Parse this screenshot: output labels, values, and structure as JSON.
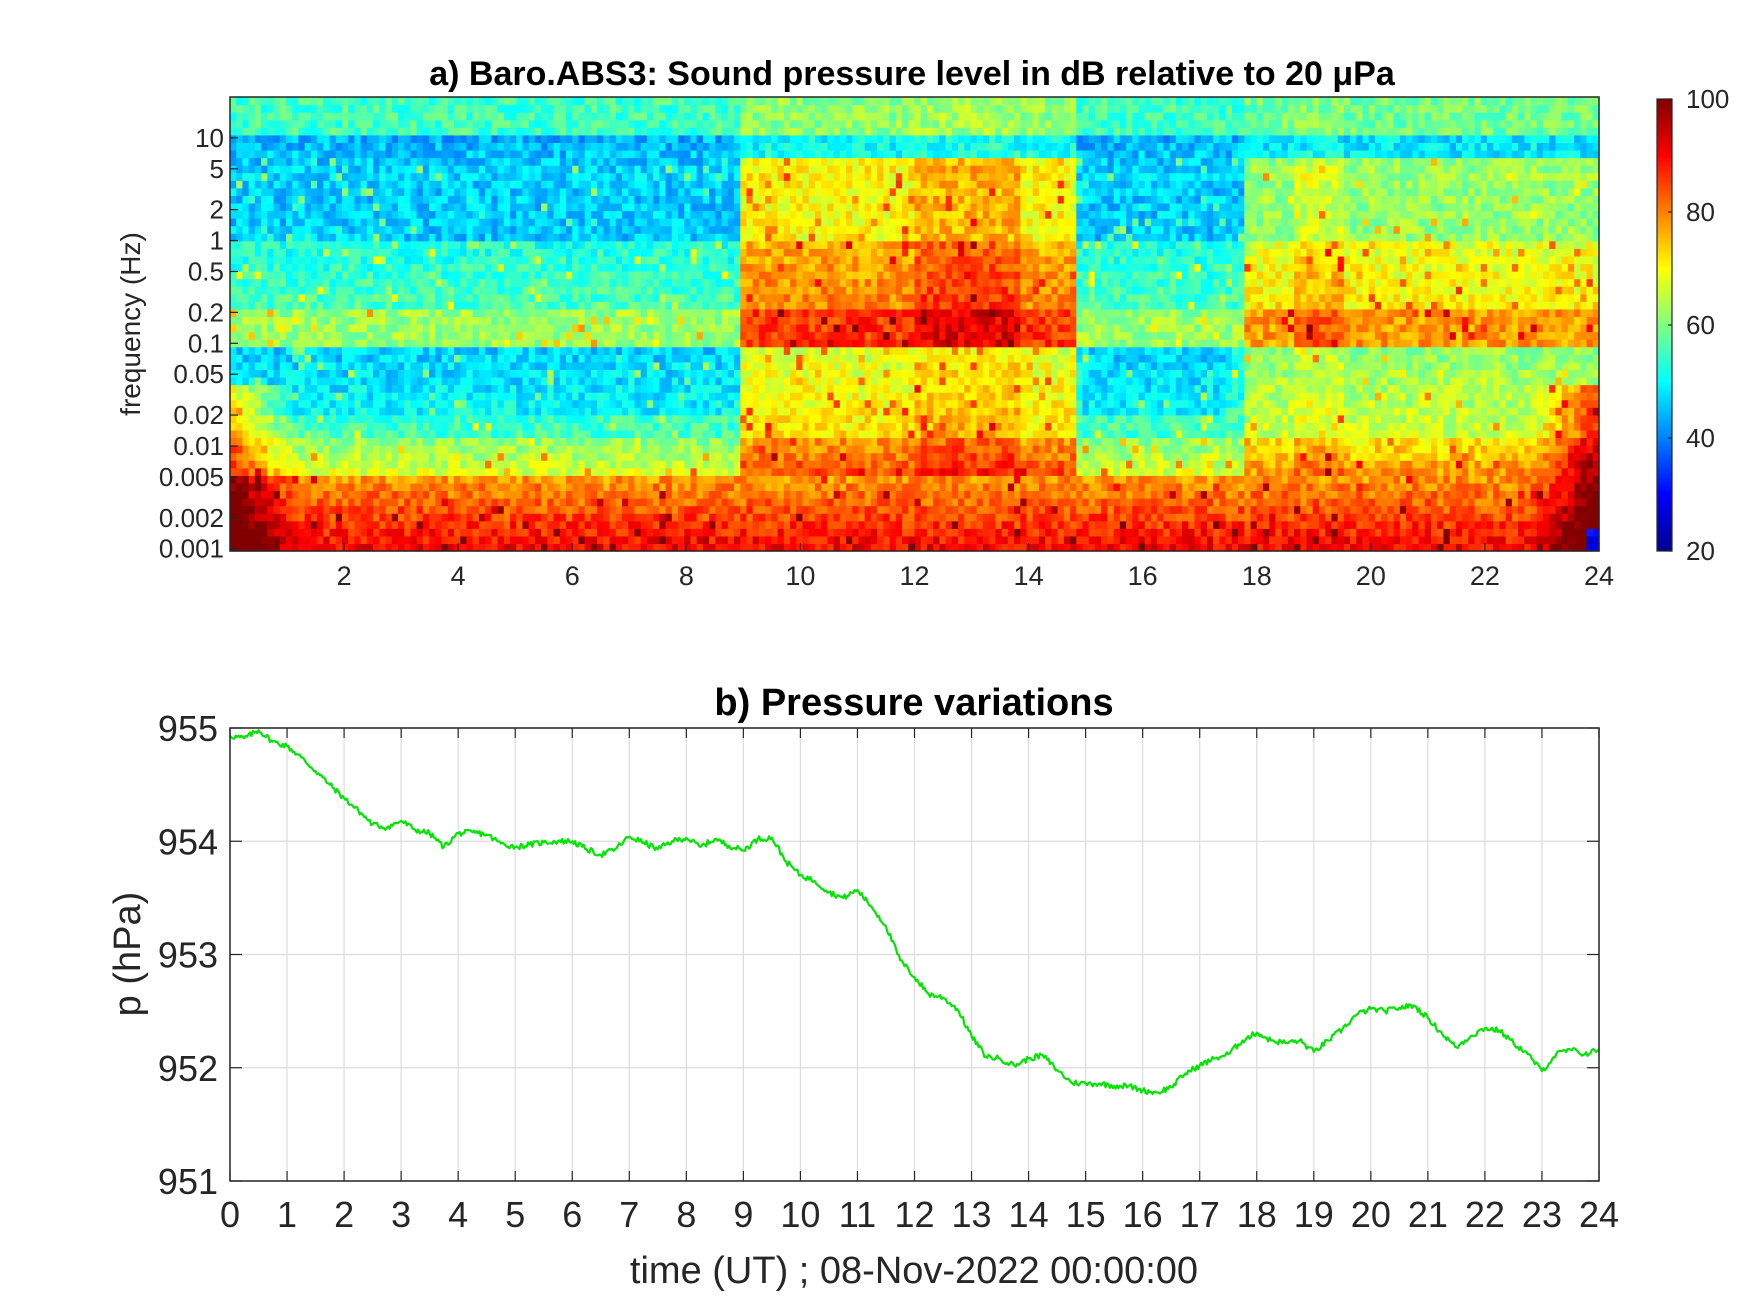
{
  "chart_data": [
    {
      "type": "heatmap",
      "title": "a) Baro.ABS3: Sound pressure level in dB relative to 20 μPa",
      "ylabel": "frequency (Hz)",
      "xlabel": "",
      "y_scale": "log",
      "x_ticks": [
        "2",
        "4",
        "6",
        "8",
        "10",
        "12",
        "14",
        "16",
        "18",
        "20",
        "22",
        "24"
      ],
      "y_ticks": [
        "0.001",
        "0.002",
        "0.005",
        "0.01",
        "0.02",
        "0.05",
        "0.1",
        "0.2",
        "0.5",
        "1",
        "2",
        "5",
        "10"
      ],
      "xlim": [
        0,
        24
      ],
      "ylim": [
        0.00095,
        25
      ],
      "colorbar": {
        "label": "",
        "range": [
          20,
          100
        ],
        "ticks": [
          "20",
          "40",
          "60",
          "80",
          "100"
        ],
        "colormap": "jet"
      },
      "quiet_periods_hours": [
        [
          0,
          9
        ],
        [
          15,
          17.5
        ]
      ],
      "active_periods_hours": [
        [
          9,
          15
        ],
        [
          17.5,
          24
        ]
      ],
      "notes": "High levels (80-100 dB) at frequencies below 0.005 Hz throughout the day; broadband activity (65-90 dB) from about 9 to 15 UT extending up to ~5 Hz; quiet band (45-55 dB) at 0.02-0.1 Hz outside active periods; ~55 dB above 5 Hz."
    },
    {
      "type": "line",
      "title": "b) Pressure variations",
      "xlabel": "time (UT) ; 08-Nov-2022 00:00:00",
      "ylabel": "p (hPa)",
      "xlim": [
        0,
        24
      ],
      "ylim": [
        951,
        955
      ],
      "x_ticks": [
        "0",
        "1",
        "2",
        "3",
        "4",
        "5",
        "6",
        "7",
        "8",
        "9",
        "10",
        "11",
        "12",
        "13",
        "14",
        "15",
        "16",
        "17",
        "18",
        "19",
        "20",
        "21",
        "22",
        "23",
        "24"
      ],
      "y_ticks": [
        "951",
        "952",
        "953",
        "954",
        "955"
      ],
      "grid": true,
      "series": [
        {
          "color": "#00e600",
          "x": [
            0,
            0.25,
            0.5,
            0.75,
            1.0,
            1.25,
            1.5,
            1.75,
            2.0,
            2.25,
            2.5,
            2.75,
            3.0,
            3.25,
            3.5,
            3.75,
            4.0,
            4.25,
            4.5,
            4.75,
            5.0,
            5.25,
            5.5,
            5.75,
            6.0,
            6.25,
            6.5,
            6.75,
            7.0,
            7.25,
            7.5,
            7.75,
            8.0,
            8.25,
            8.5,
            8.75,
            9.0,
            9.25,
            9.5,
            9.75,
            10.0,
            10.25,
            10.5,
            10.75,
            11.0,
            11.25,
            11.5,
            11.75,
            12.0,
            12.25,
            12.5,
            12.75,
            13.0,
            13.25,
            13.5,
            13.75,
            14.0,
            14.25,
            14.5,
            14.75,
            15.0,
            15.25,
            15.5,
            15.75,
            16.0,
            16.25,
            16.5,
            16.75,
            17.0,
            17.25,
            17.5,
            17.75,
            18.0,
            18.25,
            18.5,
            18.75,
            19.0,
            19.25,
            19.5,
            19.75,
            20.0,
            20.25,
            20.5,
            20.75,
            21.0,
            21.25,
            21.5,
            21.75,
            22.0,
            22.25,
            22.5,
            22.75,
            23.0,
            23.25,
            23.5,
            23.75,
            24.0
          ],
          "y": [
            954.93,
            954.91,
            954.98,
            954.88,
            954.84,
            954.74,
            954.62,
            954.5,
            954.38,
            954.27,
            954.15,
            954.12,
            954.18,
            954.1,
            954.07,
            953.95,
            954.07,
            954.08,
            954.06,
            953.98,
            953.95,
            953.97,
            953.99,
            954.0,
            954.0,
            953.93,
            953.88,
            953.93,
            954.04,
            953.99,
            953.93,
            954.0,
            954.03,
            953.95,
            954.02,
            953.96,
            953.92,
            954.02,
            954.03,
            953.82,
            953.7,
            953.65,
            953.55,
            953.5,
            953.57,
            953.42,
            953.25,
            952.95,
            952.8,
            952.65,
            952.62,
            952.52,
            952.28,
            952.1,
            952.08,
            952.02,
            952.08,
            952.11,
            951.98,
            951.87,
            951.86,
            951.86,
            951.84,
            951.84,
            951.8,
            951.78,
            951.83,
            951.95,
            952.02,
            952.08,
            952.12,
            952.24,
            952.31,
            952.24,
            952.22,
            952.24,
            952.14,
            952.24,
            952.34,
            952.47,
            952.52,
            952.5,
            952.53,
            952.55,
            952.44,
            952.3,
            952.18,
            952.28,
            952.35,
            952.33,
            952.22,
            952.12,
            951.97,
            952.12,
            952.16,
            952.12,
            952.16
          ]
        }
      ]
    }
  ]
}
